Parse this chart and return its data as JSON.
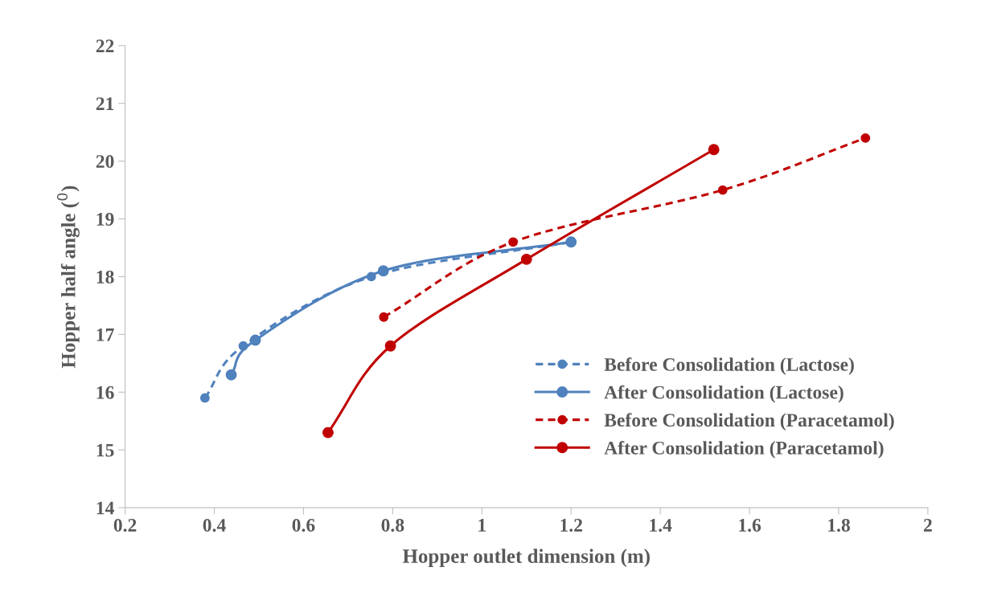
{
  "chart_data": {
    "type": "line",
    "xlabel": "Hopper outlet dimension (m)",
    "ylabel": "Hopper half angle ($^{0}$)",
    "xlim": [
      0.2,
      2
    ],
    "xticks": [
      0.2,
      0.4,
      0.6,
      0.8,
      1,
      1.2,
      1.4,
      1.6,
      1.8,
      2
    ],
    "ylim": [
      14,
      22
    ],
    "yticks": [
      14,
      15,
      16,
      17,
      18,
      19,
      20,
      21,
      22
    ],
    "grid": false,
    "legend": "bottom right",
    "marker": "circle",
    "series": [
      {
        "name": "Before Consolidation (Lactose)",
        "color": "#4f81bd",
        "line_style": "dashed",
        "x": [
          0.379,
          0.465,
          0.752,
          1.2
        ],
        "values": [
          15.9,
          16.8,
          18.0,
          18.6
        ]
      },
      {
        "name": "After Consolidation (Lactose)",
        "color": "#4f81bd",
        "line_style": "solid",
        "x": [
          0.438,
          0.492,
          0.779,
          1.2
        ],
        "values": [
          16.3,
          16.9,
          18.1,
          18.6
        ]
      },
      {
        "name": "Before Consolidation (Paracetamol)",
        "color": "#c00000",
        "line_style": "dashed",
        "x": [
          0.78,
          1.07,
          1.54,
          1.86
        ],
        "values": [
          17.3,
          18.6,
          19.5,
          20.4
        ]
      },
      {
        "name": "After Consolidation (Paracetamol)",
        "color": "#c00000",
        "line_style": "solid",
        "x": [
          0.655,
          0.795,
          1.1,
          1.52
        ],
        "values": [
          15.3,
          16.8,
          18.3,
          20.2
        ]
      }
    ]
  }
}
